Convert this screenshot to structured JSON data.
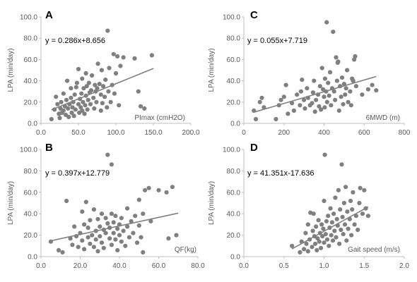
{
  "colors": {
    "point": "#7f7f7f",
    "trend": "#808080",
    "axis": "#bfbfbf",
    "text": "#595959"
  },
  "chart_data": [
    {
      "type": "scatter",
      "panel_label": "A",
      "ylabel": "LPA (min/day)",
      "xlabel": "PImax (cmH2O)",
      "equation": "y = 0.286x+8.656",
      "trendline": {
        "slope": 0.286,
        "intercept": 8.656,
        "x_range": [
          14,
          150
        ]
      },
      "xlim": [
        0,
        200
      ],
      "ylim": [
        0,
        100
      ],
      "xticks": [
        "0.0",
        "50.0",
        "100.0",
        "150.0",
        "200.0"
      ],
      "yticks": [
        "0.0",
        "20.0",
        "40.0",
        "60.0",
        "80.0",
        "100.0"
      ],
      "points": [
        [
          14,
          4
        ],
        [
          18,
          13
        ],
        [
          20,
          25
        ],
        [
          22,
          18
        ],
        [
          24,
          9
        ],
        [
          25,
          5
        ],
        [
          26,
          14
        ],
        [
          27,
          20
        ],
        [
          28,
          10
        ],
        [
          30,
          12
        ],
        [
          30,
          28
        ],
        [
          32,
          16
        ],
        [
          33,
          8
        ],
        [
          34,
          22
        ],
        [
          35,
          40
        ],
        [
          36,
          14
        ],
        [
          37,
          6
        ],
        [
          38,
          18
        ],
        [
          40,
          24
        ],
        [
          40,
          33
        ],
        [
          41,
          10
        ],
        [
          42,
          15
        ],
        [
          43,
          20
        ],
        [
          44,
          7
        ],
        [
          45,
          27
        ],
        [
          46,
          13
        ],
        [
          47,
          34
        ],
        [
          48,
          38
        ],
        [
          50,
          18
        ],
        [
          50,
          51
        ],
        [
          51,
          10
        ],
        [
          52,
          23
        ],
        [
          53,
          15
        ],
        [
          54,
          28
        ],
        [
          55,
          42
        ],
        [
          55,
          12
        ],
        [
          56,
          20
        ],
        [
          57,
          33
        ],
        [
          58,
          9
        ],
        [
          59,
          17
        ],
        [
          60,
          26
        ],
        [
          60,
          47
        ],
        [
          61,
          35
        ],
        [
          62,
          13
        ],
        [
          63,
          22
        ],
        [
          64,
          38
        ],
        [
          65,
          29
        ],
        [
          66,
          18
        ],
        [
          67,
          31
        ],
        [
          68,
          45
        ],
        [
          70,
          24
        ],
        [
          71,
          14
        ],
        [
          72,
          36
        ],
        [
          73,
          30
        ],
        [
          74,
          20
        ],
        [
          75,
          33
        ],
        [
          76,
          56
        ],
        [
          78,
          37
        ],
        [
          80,
          12
        ],
        [
          80,
          27
        ],
        [
          81,
          50
        ],
        [
          82,
          19
        ],
        [
          83,
          35
        ],
        [
          85,
          25
        ],
        [
          86,
          41
        ],
        [
          88,
          15
        ],
        [
          89,
          87
        ],
        [
          90,
          30
        ],
        [
          91,
          52
        ],
        [
          93,
          20
        ],
        [
          95,
          36
        ],
        [
          97,
          65
        ],
        [
          98,
          28
        ],
        [
          100,
          47
        ],
        [
          102,
          63
        ],
        [
          104,
          17
        ],
        [
          106,
          54
        ],
        [
          110,
          62
        ],
        [
          125,
          61
        ],
        [
          130,
          30
        ],
        [
          133,
          16
        ],
        [
          138,
          14
        ],
        [
          148,
          64
        ]
      ]
    },
    {
      "type": "scatter",
      "panel_label": "C",
      "ylabel": "LPA (min/day)",
      "xlabel": "6MWD (m)",
      "equation": "y = 0.055x+7.719",
      "trendline": {
        "slope": 0.055,
        "intercept": 7.719,
        "x_range": [
          50,
          660
        ]
      },
      "xlim": [
        0,
        800
      ],
      "ylim": [
        0,
        100
      ],
      "xticks": [
        "0",
        "200",
        "400",
        "600",
        "800"
      ],
      "yticks": [
        "0.0",
        "20.0",
        "40.0",
        "60.0",
        "80.0",
        "100.0"
      ],
      "points": [
        [
          50,
          12
        ],
        [
          60,
          4
        ],
        [
          80,
          20
        ],
        [
          90,
          24
        ],
        [
          100,
          15
        ],
        [
          160,
          4
        ],
        [
          175,
          17
        ],
        [
          185,
          22
        ],
        [
          200,
          25
        ],
        [
          210,
          36
        ],
        [
          220,
          9
        ],
        [
          240,
          19
        ],
        [
          250,
          12
        ],
        [
          265,
          27
        ],
        [
          280,
          17
        ],
        [
          285,
          30
        ],
        [
          290,
          41
        ],
        [
          300,
          22
        ],
        [
          305,
          14
        ],
        [
          315,
          33
        ],
        [
          320,
          24
        ],
        [
          330,
          17
        ],
        [
          340,
          19
        ],
        [
          345,
          29
        ],
        [
          350,
          40
        ],
        [
          355,
          11
        ],
        [
          360,
          22
        ],
        [
          370,
          27
        ],
        [
          375,
          16
        ],
        [
          380,
          35
        ],
        [
          385,
          13
        ],
        [
          390,
          52
        ],
        [
          395,
          32
        ],
        [
          400,
          25
        ],
        [
          403,
          15
        ],
        [
          405,
          42
        ],
        [
          410,
          30
        ],
        [
          413,
          95
        ],
        [
          415,
          20
        ],
        [
          420,
          38
        ],
        [
          425,
          26
        ],
        [
          430,
          48
        ],
        [
          435,
          17
        ],
        [
          440,
          33
        ],
        [
          445,
          86
        ],
        [
          450,
          30
        ],
        [
          455,
          22
        ],
        [
          460,
          62
        ],
        [
          465,
          40
        ],
        [
          468,
          57
        ],
        [
          470,
          58
        ],
        [
          475,
          12
        ],
        [
          480,
          35
        ],
        [
          485,
          25
        ],
        [
          490,
          43
        ],
        [
          495,
          18
        ],
        [
          500,
          37
        ],
        [
          505,
          27
        ],
        [
          510,
          33
        ],
        [
          515,
          50
        ],
        [
          520,
          20
        ],
        [
          530,
          30
        ],
        [
          535,
          17
        ],
        [
          540,
          42
        ],
        [
          545,
          40
        ],
        [
          550,
          60
        ],
        [
          555,
          63
        ],
        [
          560,
          35
        ],
        [
          590,
          27
        ],
        [
          620,
          32
        ],
        [
          640,
          36
        ],
        [
          660,
          31
        ]
      ]
    },
    {
      "type": "scatter",
      "panel_label": "B",
      "ylabel": "LPA (min/day)",
      "xlabel": "QF(kg)",
      "equation": "y = 0.397x+12.779",
      "trendline": {
        "slope": 0.397,
        "intercept": 12.779,
        "x_range": [
          5,
          70
        ]
      },
      "xlim": [
        0,
        80
      ],
      "ylim": [
        0,
        100
      ],
      "xticks": [
        "0.0",
        "20.0",
        "40.0",
        "60.0",
        "80.0"
      ],
      "yticks": [
        "0.0",
        "20.0",
        "40.0",
        "60.0",
        "80.0",
        "100.0"
      ],
      "points": [
        [
          5,
          14
        ],
        [
          9,
          6
        ],
        [
          11,
          4
        ],
        [
          13,
          52
        ],
        [
          15,
          17
        ],
        [
          16,
          11
        ],
        [
          17,
          28
        ],
        [
          18,
          19
        ],
        [
          19,
          9
        ],
        [
          20,
          22
        ],
        [
          21,
          15
        ],
        [
          21,
          42
        ],
        [
          22,
          7
        ],
        [
          22,
          30
        ],
        [
          23,
          51
        ],
        [
          24,
          18
        ],
        [
          24,
          27
        ],
        [
          25,
          12
        ],
        [
          25,
          34
        ],
        [
          26,
          20
        ],
        [
          27,
          44
        ],
        [
          27,
          9
        ],
        [
          28,
          24
        ],
        [
          28,
          16
        ],
        [
          29,
          35
        ],
        [
          29,
          5
        ],
        [
          30,
          28
        ],
        [
          30,
          19
        ],
        [
          31,
          13
        ],
        [
          31,
          40
        ],
        [
          32,
          25
        ],
        [
          32,
          8
        ],
        [
          33,
          22
        ],
        [
          33,
          36
        ],
        [
          34,
          31
        ],
        [
          34,
          95
        ],
        [
          35,
          17
        ],
        [
          35,
          27
        ],
        [
          36,
          40
        ],
        [
          36,
          86
        ],
        [
          36,
          11
        ],
        [
          37,
          22
        ],
        [
          37,
          32
        ],
        [
          38,
          16
        ],
        [
          38,
          38
        ],
        [
          39,
          26
        ],
        [
          39,
          6
        ],
        [
          40,
          30
        ],
        [
          40,
          20
        ],
        [
          41,
          14
        ],
        [
          41,
          36
        ],
        [
          42,
          24
        ],
        [
          43,
          10
        ],
        [
          44,
          28
        ],
        [
          44,
          45
        ],
        [
          45,
          18
        ],
        [
          46,
          33
        ],
        [
          47,
          22
        ],
        [
          48,
          38
        ],
        [
          49,
          13
        ],
        [
          50,
          29
        ],
        [
          50,
          53
        ],
        [
          51,
          18
        ],
        [
          52,
          40
        ],
        [
          52,
          4
        ],
        [
          53,
          62
        ],
        [
          55,
          64
        ],
        [
          56,
          33
        ],
        [
          60,
          62
        ],
        [
          64,
          60
        ],
        [
          65,
          17
        ],
        [
          67,
          65
        ],
        [
          69,
          20
        ]
      ]
    },
    {
      "type": "scatter",
      "panel_label": "D",
      "ylabel": "LPA (min/day)",
      "xlabel": "Gait speed (m/s)",
      "equation": "y = 41.351x-17.636",
      "trendline": {
        "slope": 41.351,
        "intercept": -17.636,
        "x_range": [
          0.6,
          1.55
        ]
      },
      "xlim": [
        0,
        2
      ],
      "ylim": [
        0,
        100
      ],
      "xticks": [
        "0.0",
        "0.5",
        "1.0",
        "1.5",
        "2.0"
      ],
      "yticks": [
        "0.0",
        "20.0",
        "40.0",
        "60.0",
        "80.0",
        "100.0"
      ],
      "points": [
        [
          0.6,
          10
        ],
        [
          0.7,
          4
        ],
        [
          0.72,
          14
        ],
        [
          0.75,
          7
        ],
        [
          0.77,
          22
        ],
        [
          0.78,
          12
        ],
        [
          0.8,
          5
        ],
        [
          0.8,
          30
        ],
        [
          0.82,
          16
        ],
        [
          0.83,
          41
        ],
        [
          0.85,
          9
        ],
        [
          0.86,
          24
        ],
        [
          0.87,
          40
        ],
        [
          0.88,
          19
        ],
        [
          0.89,
          12
        ],
        [
          0.9,
          28
        ],
        [
          0.91,
          6
        ],
        [
          0.92,
          17
        ],
        [
          0.93,
          34
        ],
        [
          0.94,
          14
        ],
        [
          0.95,
          22
        ],
        [
          0.96,
          8
        ],
        [
          0.97,
          30
        ],
        [
          0.98,
          19
        ],
        [
          0.99,
          26
        ],
        [
          1.0,
          13
        ],
        [
          1.0,
          52
        ],
        [
          1.01,
          95
        ],
        [
          1.02,
          21
        ],
        [
          1.03,
          33
        ],
        [
          1.04,
          16
        ],
        [
          1.05,
          38
        ],
        [
          1.06,
          10
        ],
        [
          1.07,
          27
        ],
        [
          1.08,
          45
        ],
        [
          1.09,
          20
        ],
        [
          1.1,
          32
        ],
        [
          1.11,
          15
        ],
        [
          1.12,
          40
        ],
        [
          1.13,
          24
        ],
        [
          1.14,
          55
        ],
        [
          1.15,
          18
        ],
        [
          1.16,
          35
        ],
        [
          1.17,
          29
        ],
        [
          1.18,
          62
        ],
        [
          1.19,
          12
        ],
        [
          1.2,
          44
        ],
        [
          1.21,
          25
        ],
        [
          1.22,
          86
        ],
        [
          1.23,
          37
        ],
        [
          1.24,
          21
        ],
        [
          1.25,
          50
        ],
        [
          1.26,
          30
        ],
        [
          1.27,
          65
        ],
        [
          1.28,
          15
        ],
        [
          1.29,
          42
        ],
        [
          1.3,
          26
        ],
        [
          1.32,
          35
        ],
        [
          1.33,
          52
        ],
        [
          1.34,
          20
        ],
        [
          1.35,
          44
        ],
        [
          1.36,
          60
        ],
        [
          1.38,
          30
        ],
        [
          1.4,
          38
        ],
        [
          1.42,
          25
        ],
        [
          1.44,
          50
        ],
        [
          1.45,
          64
        ],
        [
          1.48,
          40
        ],
        [
          1.5,
          62
        ],
        [
          1.52,
          45
        ],
        [
          1.55,
          38
        ]
      ]
    }
  ]
}
